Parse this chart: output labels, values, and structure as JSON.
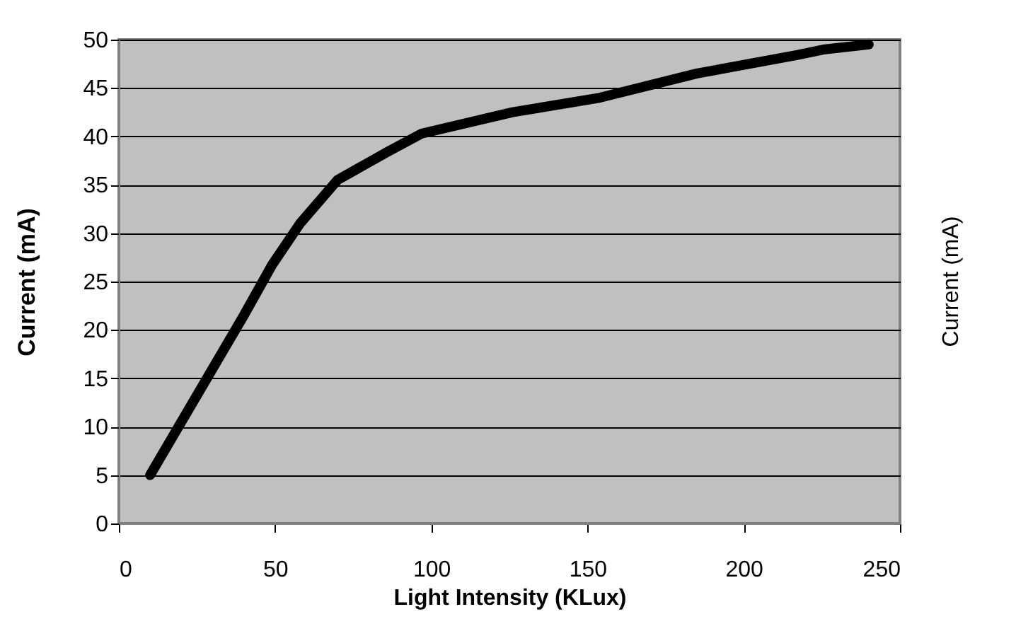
{
  "chart_data": {
    "type": "line",
    "xlabel": "Light Intensity (KLux)",
    "ylabel": "Current (mA)",
    "y2label": "Current (mA)",
    "series": [
      {
        "color": "#000000",
        "x": [
          10,
          20,
          30,
          40,
          49,
          58,
          70,
          86,
          97,
          126,
          154,
          185,
          217,
          226,
          240
        ],
        "values": [
          5,
          10.5,
          16,
          21.5,
          26.7,
          31,
          35.5,
          38.4,
          40.3,
          42.5,
          44,
          46.5,
          48.4,
          49,
          49.5
        ]
      }
    ],
    "xlim": [
      0,
      250
    ],
    "xticks": [
      0,
      50,
      100,
      150,
      200,
      250
    ],
    "ylim": [
      0,
      50
    ],
    "yticks": [
      0,
      5,
      10,
      15,
      20,
      25,
      30,
      35,
      40,
      45,
      50
    ],
    "grid": "y",
    "marker": "none",
    "line_style": "solid"
  }
}
